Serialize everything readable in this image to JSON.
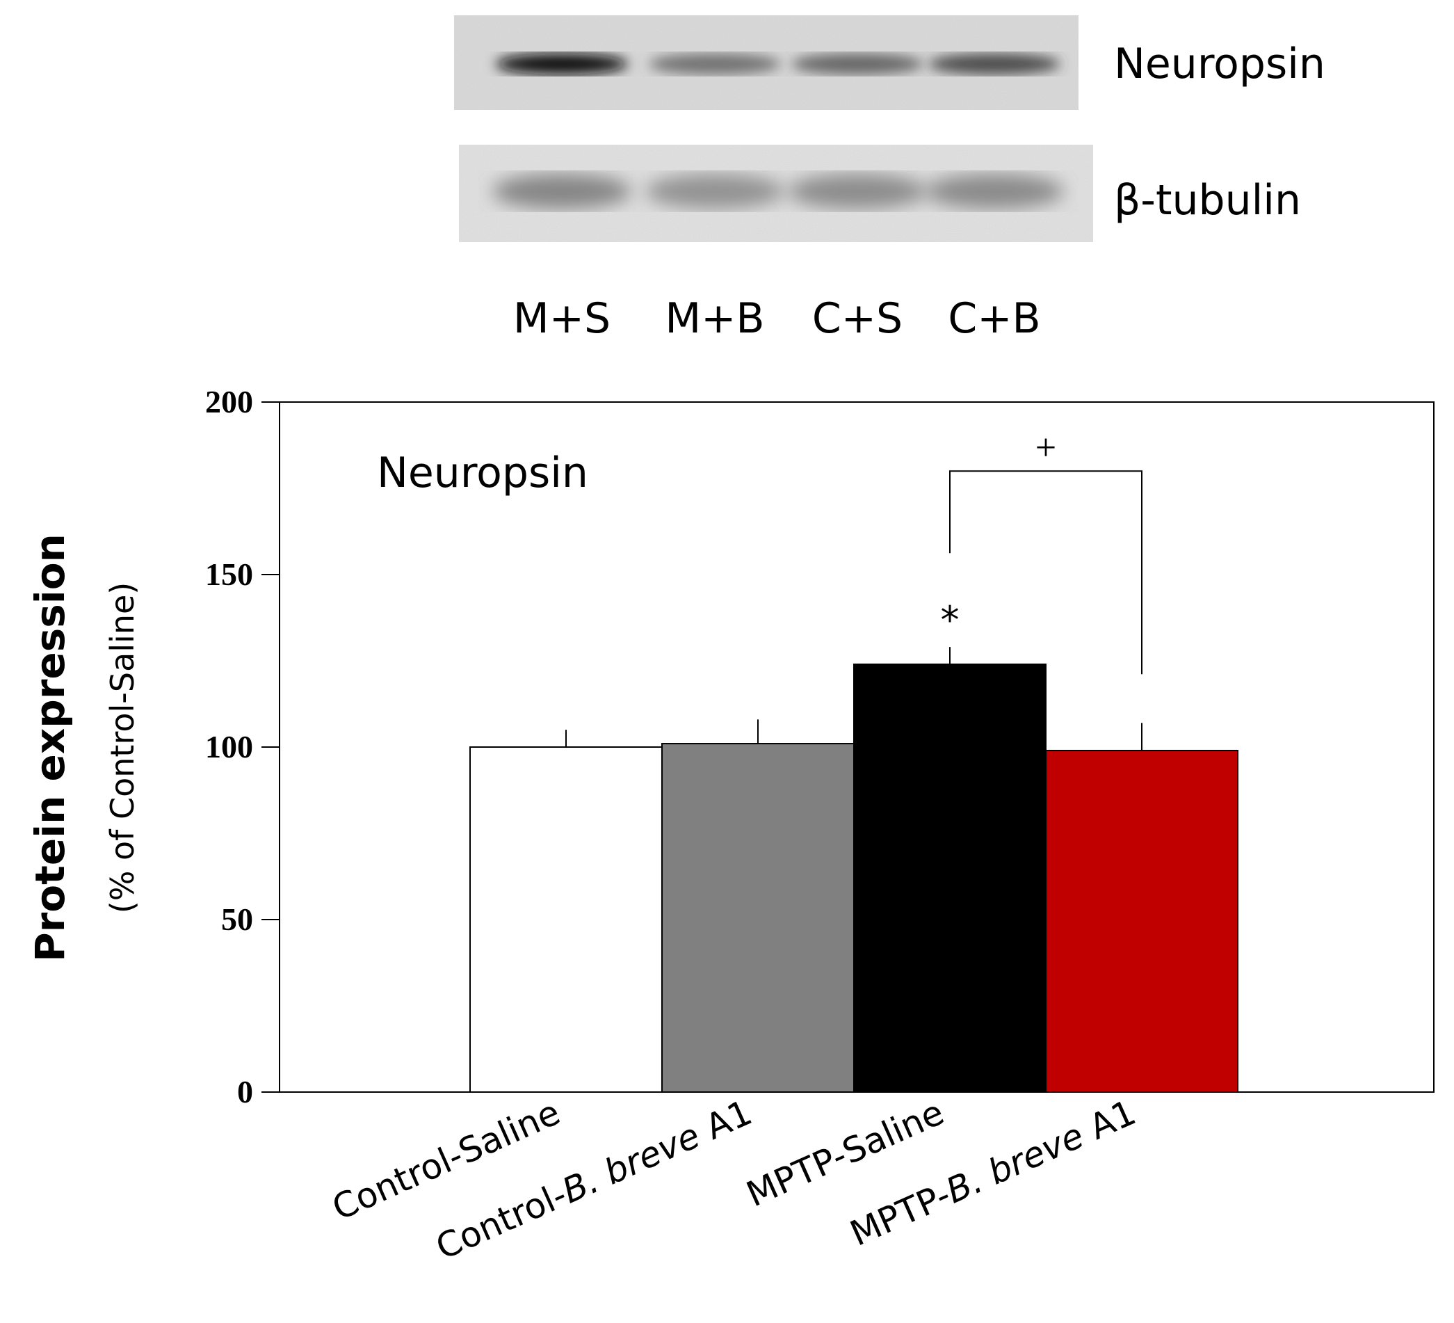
{
  "blot": {
    "rows": [
      {
        "label": "Neuropsin",
        "band_intensity": [
          0.95,
          0.62,
          0.66,
          0.75
        ]
      },
      {
        "label": "β-tubulin",
        "band_intensity": [
          0.55,
          0.5,
          0.52,
          0.53
        ]
      }
    ],
    "lanes": [
      "M+S",
      "M+B",
      "C+S",
      "C+B"
    ]
  },
  "chart_data": {
    "type": "bar",
    "title": "Neuropsin",
    "ylabel": "Protein expression",
    "ylabel_sub": "(% of Control-Saline)",
    "xlabel": "",
    "categories": [
      {
        "prefix": "Control-Saline",
        "italic": "",
        "suffix": ""
      },
      {
        "prefix": "Control-",
        "italic": "B. breve",
        "suffix": " A1"
      },
      {
        "prefix": "MPTP-Saline",
        "italic": "",
        "suffix": ""
      },
      {
        "prefix": "MPTP-",
        "italic": "B. breve",
        "suffix": " A1"
      }
    ],
    "values": [
      100,
      101,
      124,
      99
    ],
    "errors": [
      5,
      7,
      5,
      8
    ],
    "colors": [
      "#ffffff",
      "#808080",
      "#000000",
      "#c00000"
    ],
    "ylim": [
      0,
      200
    ],
    "yticks": [
      0,
      50,
      100,
      150,
      200
    ],
    "annotations": {
      "star": {
        "text": "*",
        "bar": 2
      },
      "bracket": {
        "text": "+",
        "from": 2,
        "to": 3,
        "level": 180
      }
    },
    "grid": false,
    "legend": "none"
  }
}
